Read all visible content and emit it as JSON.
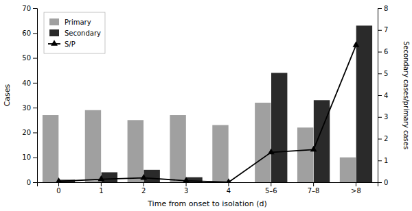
{
  "chart_data": {
    "type": "bar",
    "categories": [
      "0",
      "1",
      "2",
      "3",
      "4",
      "5–6",
      "7–8",
      ">8"
    ],
    "series": [
      {
        "name": "Primary",
        "color": "#a0a0a0",
        "values": [
          27,
          29,
          25,
          27,
          23,
          32,
          22,
          10
        ]
      },
      {
        "name": "Secondary",
        "color": "#2a2a2a",
        "values": [
          1,
          4,
          5,
          2,
          0,
          44,
          33,
          63
        ]
      },
      {
        "name": "S/P",
        "type": "line",
        "axis": "y2",
        "color": "#000000",
        "marker": "triangle",
        "line_style": "solid",
        "values": [
          0.04,
          0.14,
          0.2,
          0.07,
          0.0,
          1.375,
          1.5,
          6.3
        ]
      }
    ],
    "xlabel": "Time from onset to isolation (d)",
    "ylabel": "Cases",
    "y2label": "Secondary cases/primary cases",
    "ylim": [
      0,
      70
    ],
    "yticks": [
      0,
      10,
      20,
      30,
      40,
      50,
      60,
      70
    ],
    "y2lim": [
      0,
      8
    ],
    "y2ticks": [
      0,
      1,
      2,
      3,
      4,
      5,
      6,
      7,
      8
    ],
    "grid": false,
    "legend": "upper left"
  }
}
